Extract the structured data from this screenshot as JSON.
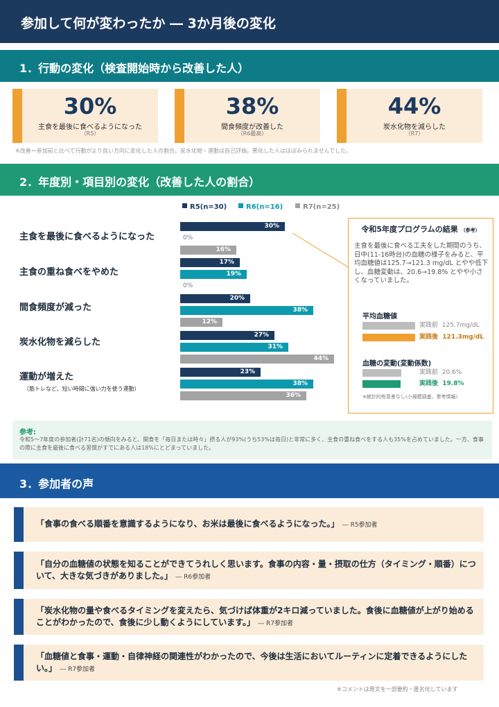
{
  "header": {
    "title": "参加して何が変わったか ― 3か月後の変化"
  },
  "section1": {
    "title": "1．行動の変化（検査開始時から改善した人）",
    "stats": [
      {
        "value": "30%",
        "label": "主食を最後に食べるようになった",
        "sub": "（R5）",
        "accent": "#f0a030"
      },
      {
        "value": "38%",
        "label": "間食頻度が改善した",
        "sub": "（R6最高）",
        "accent": "#f0a030"
      },
      {
        "value": "44%",
        "label": "炭水化物を減らした",
        "sub": "（R7）",
        "accent": "#f0a030"
      }
    ],
    "note": "※改善＝参加前と比べて行動がより良い方向に変化した人の割合。炭水化物・運動は自己評価。悪化した人はほぼみられませんでした。"
  },
  "section2": {
    "title": "2．年度別・項目別の変化（改善した人の割合）"
  },
  "chart_data": {
    "type": "bar",
    "orientation": "horizontal",
    "categories": [
      "主食を最後に食べるようになった",
      "主食の重ね食べをやめた",
      "間食頻度が減った",
      "炭水化物を減らした",
      "運動が増えた"
    ],
    "category_notes": [
      "",
      "",
      "",
      "",
      "（筋トレなど、短い時間に強い力を使う運動）"
    ],
    "series": [
      {
        "name": "R5(n=30)",
        "color": "#1c3a5e",
        "values": [
          30,
          17,
          20,
          27,
          23
        ]
      },
      {
        "name": "R6(n=16)",
        "color": "#0e9aae",
        "values": [
          0,
          19,
          38,
          31,
          38
        ]
      },
      {
        "name": "R7(n=25)",
        "color": "#a3a3a3",
        "values": [
          16,
          0,
          12,
          44,
          36
        ]
      }
    ],
    "unit": "%",
    "xlim": [
      0,
      50
    ],
    "legend": "top",
    "grid": false
  },
  "callout": {
    "title": "令和5年度プログラムの結果",
    "title_note": "（参考）",
    "body": "主食を最後に食べる工夫をした期間のうち、日中(11-16時台)の血糖の様子をみると、平均血糖値は125.7→121.3 mg/dL とやや低下し、血糖変動は、20.6→19.8% とやや小さくなっていました。",
    "mean_glucose": {
      "heading": "平均血糖値",
      "before": {
        "label": "実践前",
        "value": "125.7mg/dL",
        "number": 125.7,
        "color": "#bdbdbd"
      },
      "after": {
        "label": "実践後",
        "value": "121.3mg/dL",
        "number": 121.3,
        "color": "#f0a030"
      }
    },
    "variability": {
      "heading": "血糖の変動(変動係数)",
      "before": {
        "label": "実践前",
        "value": "20.6%",
        "number": 20.6,
        "color": "#bdbdbd"
      },
      "after": {
        "label": "実践後",
        "value": "19.8%",
        "number": 19.8,
        "color": "#1f9a74"
      }
    },
    "footnote": "※統計的有意差なし(小規模調査、参考情報)"
  },
  "reference": {
    "title": "参考:",
    "body": "令和5～7年度の参加者(計71名)の傾向をみると、間食を「毎日または時々」摂る人が93%(うち53%は毎日)と非常に多く、主食の重ね食べをする人も35%を占めていました。一方、食事の際に主食を最後に食べる習慣がすでにある人は18%にとどまっていました。"
  },
  "section3": {
    "title": "3．参加者の声",
    "quotes": [
      {
        "text": "「食事の食べる順番を意識するようになり、お米は最後に食べるようになった。」",
        "author": "― R5参加者"
      },
      {
        "text": "「自分の血糖値の状態を知ることができてうれしく思います。食事の内容・量・摂取の仕方（タイミング・順番）について、大きな気づきがありました。」",
        "author": "― R6参加者"
      },
      {
        "text": "「炭水化物の量や食べるタイミングを変えたら、気づけば体重が2キロ減っていました。食後に血糖値が上がり始めることがわかったので、食後に少し動くようにしています。」",
        "author": "― R7参加者"
      },
      {
        "text": "「血糖値と食事・運動・自律神経の関連性がわかったので、今後は生活においてルーティンに定着できるようにしたい。」",
        "author": "― R7参加者"
      }
    ],
    "footnote": "※コメントは原文を一部要約・匿名化しています"
  }
}
